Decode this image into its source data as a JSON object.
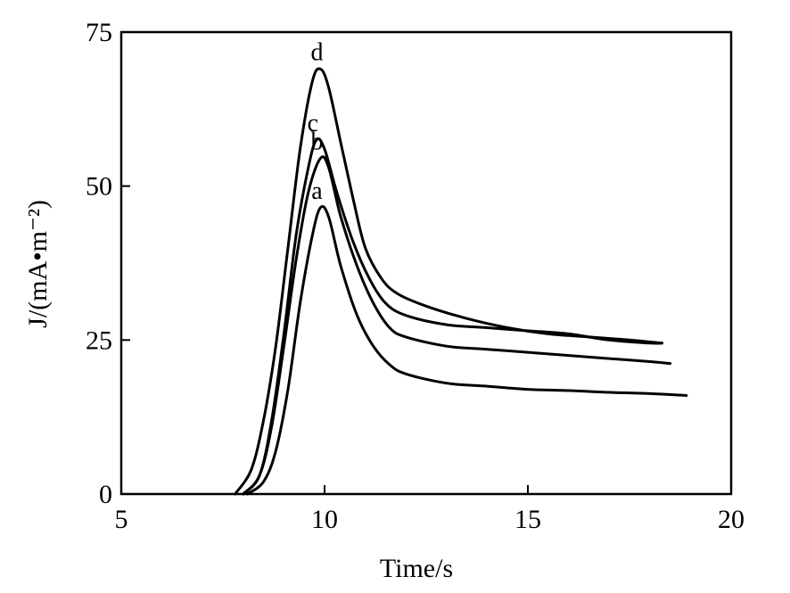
{
  "chart_data": {
    "type": "line",
    "title": "",
    "xlabel": "Time/s",
    "ylabel": "J/(mA•m⁻²)",
    "xlim": [
      5,
      20
    ],
    "ylim": [
      0,
      75
    ],
    "xticks": [
      5,
      10,
      15,
      20
    ],
    "yticks": [
      0,
      25,
      50,
      75
    ],
    "grid": false,
    "series": [
      {
        "name": "a",
        "x": [
          8.1,
          8.5,
          8.8,
          9.1,
          9.4,
          9.7,
          9.9,
          10.1,
          10.4,
          10.8,
          11.2,
          11.6,
          12.0,
          13.0,
          14.0,
          15.0,
          16.0,
          17.0,
          18.0,
          18.9
        ],
        "y": [
          0,
          2,
          7,
          17,
          31,
          42,
          46.5,
          45,
          37,
          29,
          24,
          21,
          19.5,
          18,
          17.5,
          17,
          16.8,
          16.5,
          16.3,
          16
        ]
      },
      {
        "name": "b",
        "x": [
          8.0,
          8.4,
          8.7,
          9.0,
          9.3,
          9.6,
          9.9,
          10.1,
          10.4,
          10.8,
          11.2,
          11.6,
          12.0,
          13.0,
          14.0,
          15.0,
          16.0,
          17.0,
          18.0,
          18.5
        ],
        "y": [
          0,
          3,
          11,
          24,
          38,
          49,
          54.5,
          53,
          45,
          37,
          31,
          27,
          25.5,
          24,
          23.5,
          23,
          22.5,
          22,
          21.5,
          21.2
        ]
      },
      {
        "name": "c",
        "x": [
          8.0,
          8.4,
          8.7,
          9.0,
          9.3,
          9.6,
          9.8,
          10.0,
          10.3,
          10.7,
          11.1,
          11.5,
          12.0,
          13.0,
          14.0,
          15.0,
          16.0,
          17.0,
          18.0,
          18.3
        ],
        "y": [
          0,
          3,
          12,
          26,
          42,
          53,
          57.5,
          56,
          49,
          41,
          35,
          31,
          29,
          27.5,
          27,
          26.5,
          26,
          25,
          24.5,
          24.5
        ]
      },
      {
        "name": "d",
        "x": [
          7.8,
          8.2,
          8.5,
          8.8,
          9.1,
          9.4,
          9.7,
          9.9,
          10.1,
          10.4,
          10.7,
          11.0,
          11.4,
          11.8,
          12.5,
          13.5,
          14.5,
          15.5,
          16.5,
          17.5,
          18.3
        ],
        "y": [
          0,
          4,
          12,
          24,
          40,
          56,
          67,
          69,
          66,
          57,
          48,
          40,
          35,
          32.5,
          30.5,
          28.5,
          27,
          26,
          25.5,
          25,
          24.5
        ]
      }
    ]
  }
}
